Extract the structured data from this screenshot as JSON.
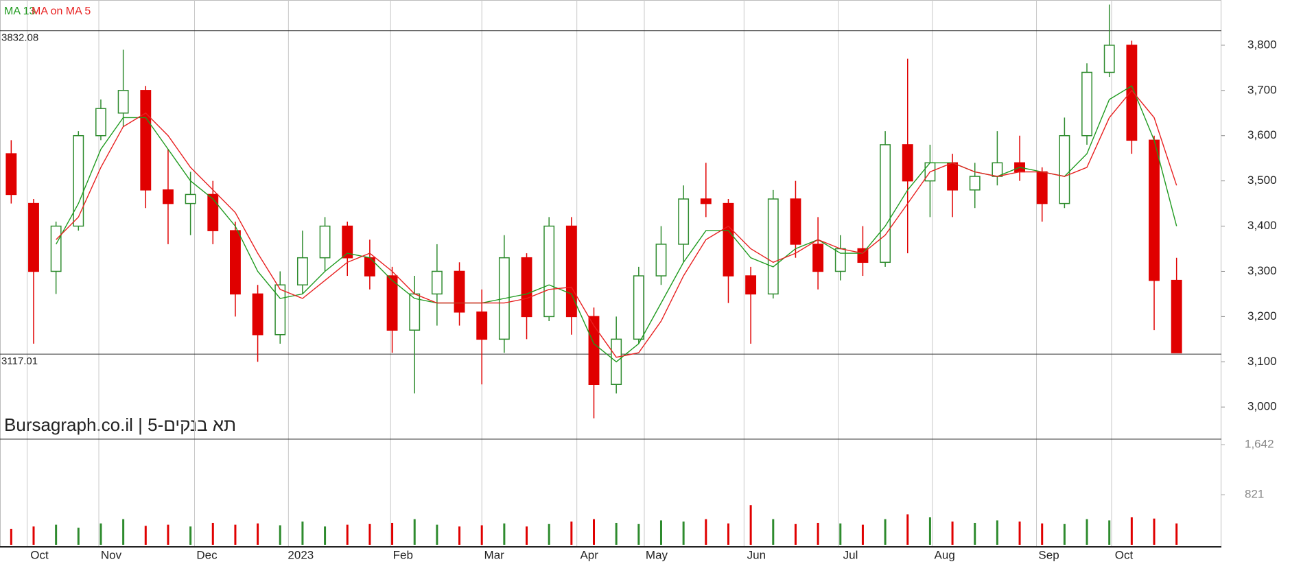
{
  "chart_data": {
    "type": "candlestick",
    "title": "Bursagraph.co.il | תא בנקים-5",
    "up_color": "#2e8b2e",
    "down_color": "#e00000",
    "x": [
      0,
      1,
      2,
      3,
      4,
      5,
      6,
      7,
      8,
      9,
      10,
      11,
      12,
      13,
      14,
      15,
      16,
      17,
      18,
      19,
      20,
      21,
      22,
      23,
      24,
      25,
      26,
      27,
      28,
      29,
      30,
      31,
      32,
      33,
      34,
      35,
      36,
      37,
      38,
      39,
      40,
      41,
      42,
      43,
      44,
      45,
      46,
      47,
      48,
      49,
      50,
      51,
      52
    ],
    "open": [
      3560,
      3450,
      3300,
      3400,
      3600,
      3650,
      3700,
      3480,
      3450,
      3470,
      3390,
      3250,
      3160,
      3270,
      3330,
      3400,
      3330,
      3290,
      3170,
      3250,
      3300,
      3210,
      3150,
      3330,
      3200,
      3400,
      3200,
      3050,
      3150,
      3290,
      3360,
      3460,
      3450,
      3290,
      3250,
      3460,
      3360,
      3300,
      3350,
      3320,
      3580,
      3500,
      3540,
      3480,
      3510,
      3540,
      3520,
      3450,
      3600,
      3740,
      3800,
      3590,
      3280
    ],
    "high": [
      3590,
      3460,
      3410,
      3610,
      3680,
      3790,
      3710,
      3570,
      3520,
      3500,
      3410,
      3270,
      3300,
      3390,
      3420,
      3410,
      3370,
      3310,
      3290,
      3360,
      3320,
      3260,
      3380,
      3340,
      3420,
      3420,
      3220,
      3200,
      3310,
      3400,
      3490,
      3540,
      3460,
      3310,
      3480,
      3500,
      3420,
      3380,
      3400,
      3610,
      3770,
      3580,
      3560,
      3540,
      3610,
      3600,
      3530,
      3640,
      3760,
      3890,
      3810,
      3600,
      3330
    ],
    "low": [
      3450,
      3140,
      3250,
      3390,
      3590,
      3620,
      3440,
      3360,
      3380,
      3360,
      3200,
      3100,
      3140,
      3250,
      3300,
      3290,
      3260,
      3120,
      3030,
      3180,
      3180,
      3050,
      3120,
      3150,
      3190,
      3160,
      2975,
      3030,
      3140,
      3270,
      3320,
      3420,
      3230,
      3140,
      3240,
      3330,
      3260,
      3280,
      3290,
      3310,
      3340,
      3420,
      3420,
      3440,
      3490,
      3500,
      3410,
      3440,
      3580,
      3730,
      3560,
      3170,
      3120
    ],
    "close": [
      3470,
      3300,
      3400,
      3600,
      3660,
      3700,
      3480,
      3450,
      3470,
      3390,
      3250,
      3160,
      3270,
      3330,
      3400,
      3330,
      3290,
      3170,
      3250,
      3300,
      3210,
      3150,
      3330,
      3200,
      3400,
      3200,
      3050,
      3150,
      3290,
      3360,
      3460,
      3450,
      3290,
      3250,
      3460,
      3360,
      3300,
      3350,
      3320,
      3580,
      3500,
      3540,
      3480,
      3510,
      3540,
      3520,
      3450,
      3600,
      3740,
      3800,
      3590,
      3280,
      3120
    ],
    "volume": [
      260,
      300,
      330,
      280,
      350,
      420,
      310,
      330,
      300,
      360,
      330,
      350,
      320,
      380,
      300,
      330,
      340,
      360,
      420,
      330,
      300,
      320,
      350,
      300,
      340,
      380,
      420,
      360,
      340,
      400,
      380,
      420,
      350,
      650,
      420,
      340,
      360,
      350,
      330,
      420,
      500,
      450,
      380,
      360,
      400,
      380,
      350,
      340,
      420,
      400,
      450,
      430,
      350
    ],
    "series": [
      {
        "name": "MA 13",
        "color": "#1f9a1f",
        "values": [
          null,
          null,
          3360,
          3450,
          3570,
          3640,
          3640,
          3570,
          3500,
          3460,
          3400,
          3300,
          3240,
          3250,
          3300,
          3340,
          3330,
          3280,
          3240,
          3230,
          3230,
          3230,
          3240,
          3250,
          3270,
          3250,
          3140,
          3100,
          3140,
          3230,
          3320,
          3390,
          3390,
          3330,
          3310,
          3350,
          3370,
          3340,
          3340,
          3400,
          3480,
          3540,
          3540,
          3520,
          3510,
          3530,
          3520,
          3510,
          3560,
          3680,
          3710,
          3590,
          3400
        ]
      },
      {
        "name": "MA on MA 5",
        "color": "#e82020",
        "values": [
          null,
          null,
          3370,
          3420,
          3530,
          3620,
          3650,
          3600,
          3530,
          3480,
          3430,
          3340,
          3260,
          3240,
          3280,
          3320,
          3340,
          3300,
          3250,
          3230,
          3230,
          3230,
          3230,
          3240,
          3260,
          3265,
          3180,
          3110,
          3120,
          3190,
          3290,
          3370,
          3400,
          3350,
          3320,
          3340,
          3370,
          3350,
          3340,
          3380,
          3450,
          3520,
          3540,
          3520,
          3510,
          3520,
          3520,
          3510,
          3530,
          3640,
          3700,
          3640,
          3490
        ]
      }
    ],
    "hlines": [
      3832.08,
      3117.01
    ],
    "xlim": [
      -0.5,
      54
    ],
    "xticks": [
      {
        "value": 0.71,
        "label": "Oct"
      },
      {
        "value": 3.91,
        "label": "Nov"
      },
      {
        "value": 8.18,
        "label": "Dec"
      },
      {
        "value": 12.37,
        "label": "2023"
      },
      {
        "value": 16.93,
        "label": "Feb"
      },
      {
        "value": 21.0,
        "label": "Mar"
      },
      {
        "value": 25.24,
        "label": "Apr"
      },
      {
        "value": 28.25,
        "label": "May"
      },
      {
        "value": 32.7,
        "label": "Jun"
      },
      {
        "value": 36.9,
        "label": "Jul"
      },
      {
        "value": 41.1,
        "label": "Aug"
      },
      {
        "value": 45.75,
        "label": "Sep"
      },
      {
        "value": 49.1,
        "label": "Oct"
      }
    ],
    "ylim": [
      2929,
      3900
    ],
    "yticks": [
      {
        "value": 3000,
        "label": "3,000"
      },
      {
        "value": 3100,
        "label": "3,100"
      },
      {
        "value": 3200,
        "label": "3,200"
      },
      {
        "value": 3300,
        "label": "3,300"
      },
      {
        "value": 3400,
        "label": "3,400"
      },
      {
        "value": 3500,
        "label": "3,500"
      },
      {
        "value": 3600,
        "label": "3,600"
      },
      {
        "value": 3700,
        "label": "3,700"
      },
      {
        "value": 3800,
        "label": "3,800"
      }
    ],
    "volume_ylim": [
      0,
      1732
    ],
    "volume_yticks": [
      821,
      {
        "value": 1642,
        "label": "1,642"
      }
    ],
    "grid": true
  }
}
